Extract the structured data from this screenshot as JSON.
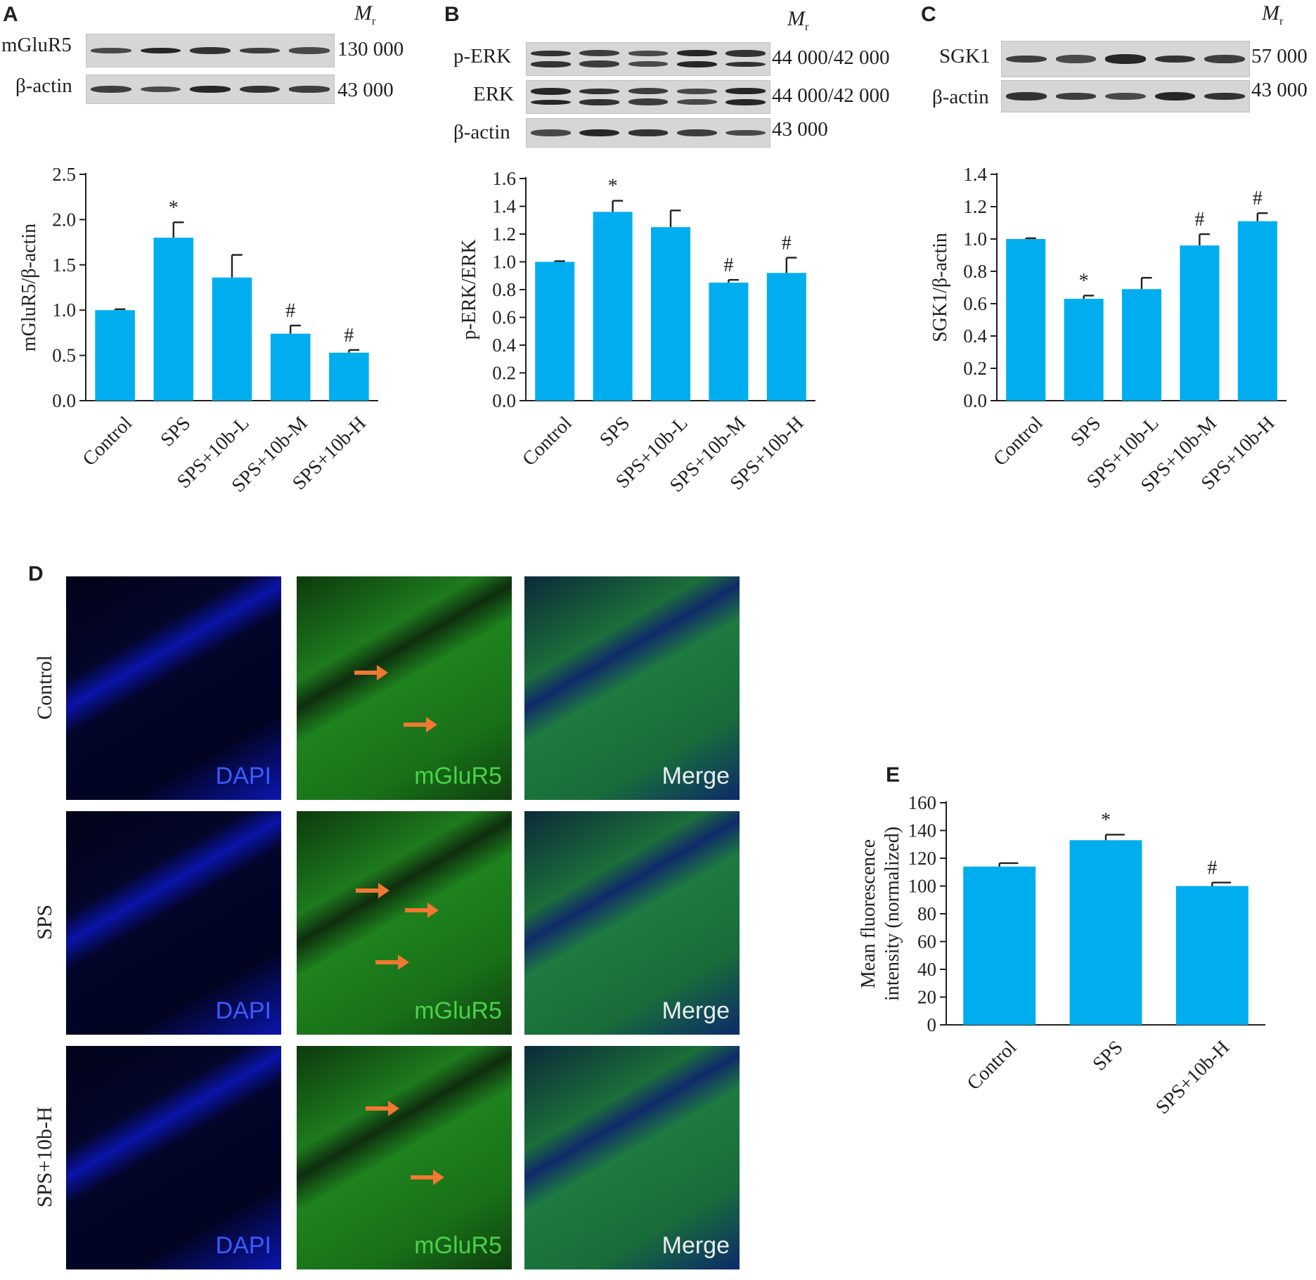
{
  "panels": {
    "A": {
      "letter": "A",
      "mr": "M",
      "mr_sub": "r",
      "blots": [
        {
          "label": "mGluR5",
          "mw": "130 000"
        },
        {
          "label": "β-actin",
          "mw": "43 000"
        }
      ]
    },
    "B": {
      "letter": "B",
      "mr": "M",
      "mr_sub": "r",
      "blots": [
        {
          "label": "p-ERK",
          "mw": "44 000/42 000"
        },
        {
          "label": "ERK",
          "mw": "44 000/42 000"
        },
        {
          "label": "β-actin",
          "mw": "43 000"
        }
      ]
    },
    "C": {
      "letter": "C",
      "mr": "M",
      "mr_sub": "r",
      "blots": [
        {
          "label": "SGK1",
          "mw": "57 000"
        },
        {
          "label": "β-actin",
          "mw": "43 000"
        }
      ]
    },
    "D": {
      "letter": "D",
      "rows": [
        "Control",
        "SPS",
        "SPS+10b-H"
      ],
      "columns": [
        "DAPI",
        "mGluR5",
        "Merge"
      ]
    },
    "E": {
      "letter": "E"
    }
  },
  "colors": {
    "bar": "#00aeef",
    "dapi": "#0a1ad8",
    "green": "#1e8a1e",
    "arrow": "#f07830"
  },
  "chart_data": [
    {
      "id": "A",
      "type": "bar",
      "categories": [
        "Control",
        "SPS",
        "SPS+10b-L",
        "SPS+10b-M",
        "SPS+10b-H"
      ],
      "values": [
        1.0,
        1.8,
        1.36,
        0.74,
        0.53
      ],
      "errors": [
        0.01,
        0.17,
        0.25,
        0.09,
        0.03
      ],
      "annotations": [
        "",
        "*",
        "",
        "#",
        "#"
      ],
      "ylabel": "mGluR5/β-actin",
      "ylim": [
        0,
        2.5
      ],
      "yticks": [
        "0.0",
        "0.5",
        "1.0",
        "1.5",
        "2.0",
        "2.5"
      ]
    },
    {
      "id": "B",
      "type": "bar",
      "categories": [
        "Control",
        "SPS",
        "SPS+10b-L",
        "SPS+10b-M",
        "SPS+10b-H"
      ],
      "values": [
        1.0,
        1.36,
        1.25,
        0.85,
        0.92
      ],
      "errors": [
        0.005,
        0.08,
        0.12,
        0.02,
        0.11
      ],
      "annotations": [
        "",
        "*",
        "",
        "#",
        "#"
      ],
      "ylabel": "p-ERK/ERK",
      "ylim": [
        0,
        1.6
      ],
      "yticks": [
        "0.0",
        "0.2",
        "0.4",
        "0.6",
        "0.8",
        "1.0",
        "1.2",
        "1.4",
        "1.6"
      ]
    },
    {
      "id": "C",
      "type": "bar",
      "categories": [
        "Control",
        "SPS",
        "SPS+10b-L",
        "SPS+10b-M",
        "SPS+10b-H"
      ],
      "values": [
        1.0,
        0.63,
        0.69,
        0.96,
        1.11
      ],
      "errors": [
        0.005,
        0.02,
        0.07,
        0.07,
        0.05
      ],
      "annotations": [
        "",
        "*",
        "",
        "#",
        "#"
      ],
      "ylabel": "SGK1/β-actin",
      "ylim": [
        0,
        1.4
      ],
      "yticks": [
        "0.0",
        "0.2",
        "0.4",
        "0.6",
        "0.8",
        "1.0",
        "1.2",
        "1.4"
      ]
    },
    {
      "id": "E",
      "type": "bar",
      "categories": [
        "Control",
        "SPS",
        "SPS+10b-H"
      ],
      "values": [
        114,
        133,
        100
      ],
      "errors": [
        2.5,
        4,
        2.5
      ],
      "annotations": [
        "",
        "*",
        "#"
      ],
      "ylabel": "Mean fluorescence intensity (normalized)",
      "ylabel_lines": [
        "Mean fluorescence",
        "intensity (normalized)"
      ],
      "ylim": [
        0,
        160
      ],
      "yticks": [
        "0",
        "20",
        "40",
        "60",
        "80",
        "100",
        "120",
        "140",
        "160"
      ]
    }
  ]
}
